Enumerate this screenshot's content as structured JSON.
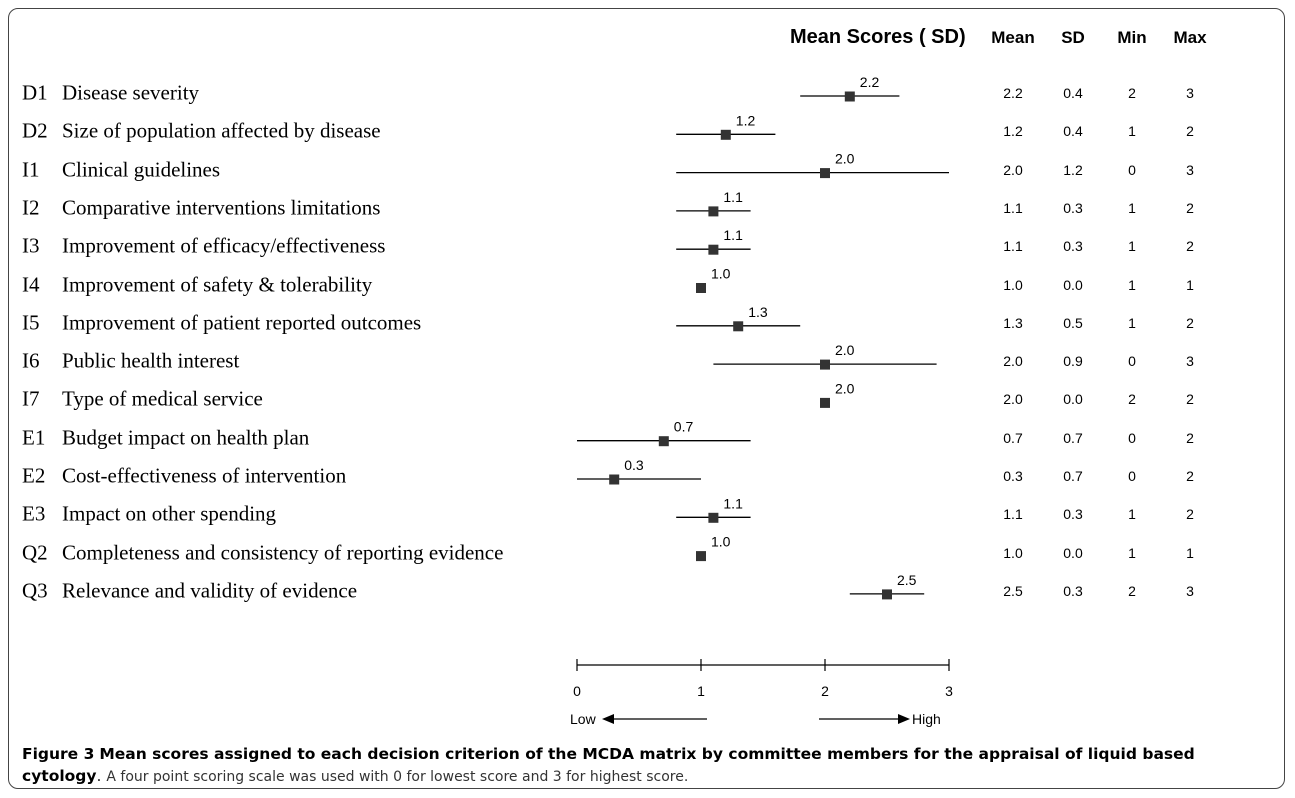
{
  "chart_data": {
    "type": "forest",
    "title": "Mean Scores ( SD)",
    "columns": [
      "Mean",
      "SD",
      "Min",
      "Max"
    ],
    "rows": [
      {
        "code": "D1",
        "label": "Disease severity",
        "mean": "2.2",
        "sd": "0.4",
        "min": "2",
        "max": "3",
        "mean_value": 2.2,
        "sd_value": 0.4
      },
      {
        "code": "D2",
        "label": "Size of population affected by disease",
        "mean": "1.2",
        "sd": "0.4",
        "min": "1",
        "max": "2",
        "mean_value": 1.2,
        "sd_value": 0.4
      },
      {
        "code": "I1",
        "label": "Clinical guidelines",
        "mean": "2.0",
        "sd": "1.2",
        "min": "0",
        "max": "3",
        "mean_value": 2.0,
        "sd_value": 1.2
      },
      {
        "code": "I2",
        "label": "Comparative interventions limitations",
        "mean": "1.1",
        "sd": "0.3",
        "min": "1",
        "max": "2",
        "mean_value": 1.1,
        "sd_value": 0.3
      },
      {
        "code": "I3",
        "label": "Improvement of efficacy/effectiveness",
        "mean": "1.1",
        "sd": "0.3",
        "min": "1",
        "max": "2",
        "mean_value": 1.1,
        "sd_value": 0.3
      },
      {
        "code": "I4",
        "label": "Improvement of safety & tolerability",
        "mean": "1.0",
        "sd": "0.0",
        "min": "1",
        "max": "1",
        "mean_value": 1.0,
        "sd_value": 0.0
      },
      {
        "code": "I5",
        "label": "Improvement of patient reported outcomes",
        "mean": "1.3",
        "sd": "0.5",
        "min": "1",
        "max": "2",
        "mean_value": 1.3,
        "sd_value": 0.5
      },
      {
        "code": "I6",
        "label": "Public health interest",
        "mean": "2.0",
        "sd": "0.9",
        "min": "0",
        "max": "3",
        "mean_value": 2.0,
        "sd_value": 0.9
      },
      {
        "code": "I7",
        "label": "Type of medical service",
        "mean": "2.0",
        "sd": "0.0",
        "min": "2",
        "max": "2",
        "mean_value": 2.0,
        "sd_value": 0.0
      },
      {
        "code": "E1",
        "label": "Budget impact on health plan",
        "mean": "0.7",
        "sd": "0.7",
        "min": "0",
        "max": "2",
        "mean_value": 0.7,
        "sd_value": 0.7
      },
      {
        "code": "E2",
        "label": "Cost-effectiveness of intervention",
        "mean": "0.3",
        "sd": "0.7",
        "min": "0",
        "max": "2",
        "mean_value": 0.3,
        "sd_value": 0.7
      },
      {
        "code": "E3",
        "label": "Impact on other spending",
        "mean": "1.1",
        "sd": "0.3",
        "min": "1",
        "max": "2",
        "mean_value": 1.1,
        "sd_value": 0.3
      },
      {
        "code": "Q2",
        "label": "Completeness and consistency of reporting evidence",
        "mean": "1.0",
        "sd": "0.0",
        "min": "1",
        "max": "1",
        "mean_value": 1.0,
        "sd_value": 0.0
      },
      {
        "code": "Q3",
        "label": "Relevance and validity of evidence",
        "mean": "2.5",
        "sd": "0.3",
        "min": "2",
        "max": "3",
        "mean_value": 2.5,
        "sd_value": 0.3
      }
    ],
    "x_axis": {
      "range": [
        0,
        3
      ],
      "ticks": [
        "0",
        "1",
        "2",
        "3"
      ],
      "low_label": "Low",
      "high_label": "High"
    },
    "colors": {
      "marker": "#333333",
      "line": "#000000"
    }
  },
  "caption": {
    "figure_label": "Figure 3",
    "bold_text": "Mean scores assigned to each decision criterion of the MCDA matrix by committee members for the appraisal of liquid based cytology",
    "body_text": "A four point scoring scale was used with 0 for lowest score and 3 for highest score."
  }
}
